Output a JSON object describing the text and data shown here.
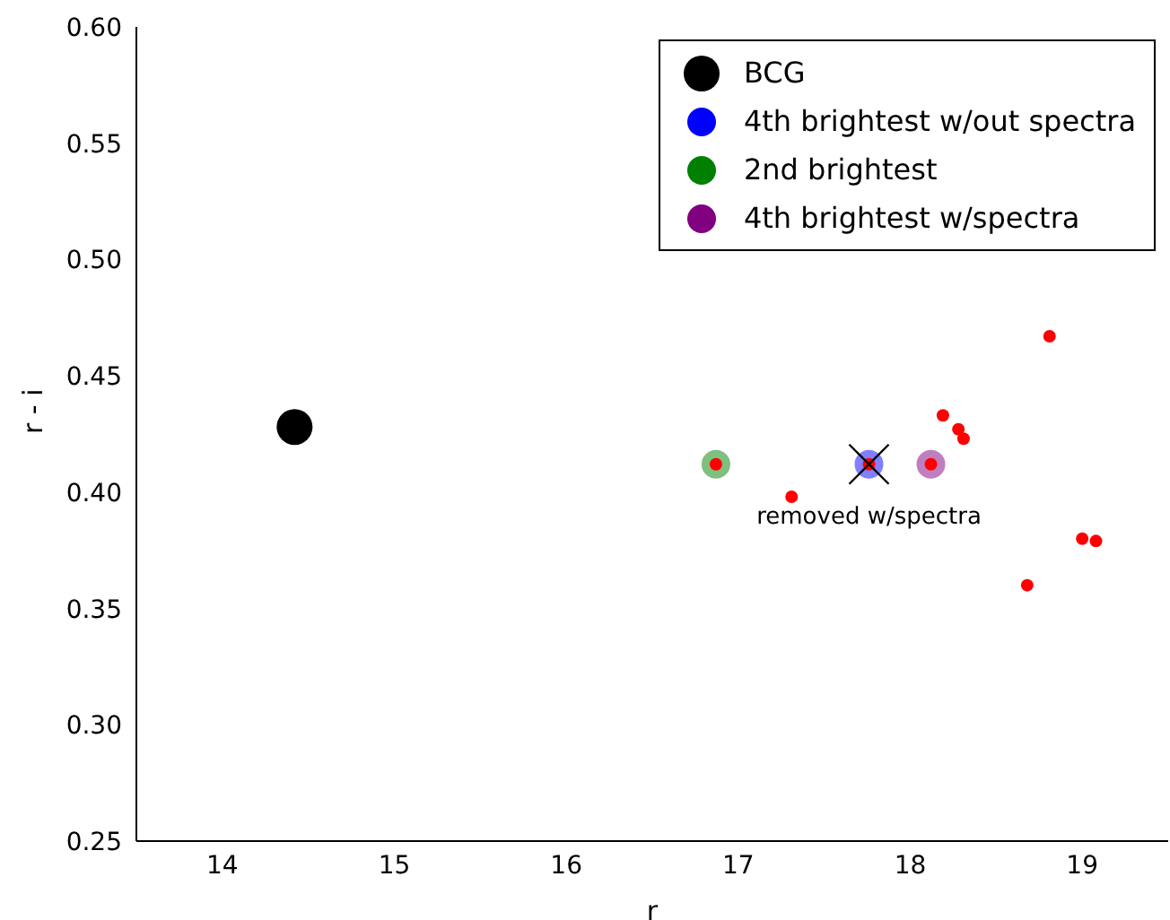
{
  "chart_data": {
    "type": "scatter",
    "xlabel": "r",
    "ylabel": "r - i",
    "xlim": [
      13.5,
      19.5
    ],
    "xticks": [
      14,
      15,
      16,
      17,
      18,
      19
    ],
    "ylim": [
      0.25,
      0.6
    ],
    "yticks": [
      0.25,
      {
        "value": 0.3,
        "label": "0.30"
      },
      0.35,
      {
        "value": 0.4,
        "label": "0.40"
      },
      0.45,
      {
        "value": 0.5,
        "label": "0.50"
      },
      0.55,
      {
        "value": 0.6,
        "label": "0.60"
      }
    ],
    "grid": false,
    "legend": "top right",
    "marker": "circle",
    "series": [
      {
        "name": "BCG",
        "color": "#000000",
        "x": [
          14.42
        ],
        "values": [
          0.428
        ]
      },
      {
        "name": "4th brightest w/out spectra",
        "color": "#0000ff",
        "x": [
          17.76
        ],
        "values": [
          0.412
        ]
      },
      {
        "name": "2nd brightest",
        "color": "#008000",
        "x": [
          16.87
        ],
        "values": [
          0.412
        ]
      },
      {
        "name": "4th brightest w/spectra",
        "color": "#800080",
        "x": [
          18.12
        ],
        "values": [
          0.412
        ]
      },
      {
        "color": "#ff0000",
        "x": [
          16.87,
          17.76,
          18.12,
          17.31,
          18.19,
          18.81,
          18.28,
          18.31,
          19.0,
          19.08,
          18.68
        ],
        "values": [
          0.412,
          0.412,
          0.412,
          0.398,
          0.433,
          0.467,
          0.427,
          0.423,
          0.38,
          0.379,
          0.36
        ]
      },
      {
        "color": "#000000",
        "marker": "cross",
        "x": [
          17.76
        ],
        "values": [
          0.412
        ]
      }
    ],
    "annotations": [
      {
        "text": "removed w/spectra",
        "x": 17.76,
        "y": 0.412
      }
    ]
  }
}
